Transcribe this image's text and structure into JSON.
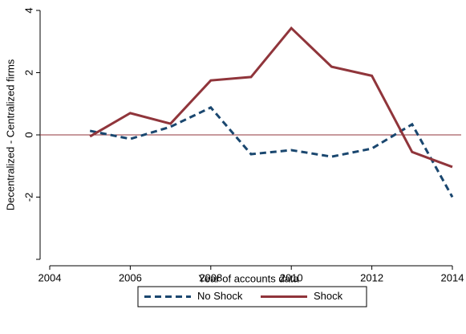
{
  "chart_data": {
    "type": "line",
    "x": [
      2005,
      2006,
      2007,
      2008,
      2009,
      2010,
      2011,
      2012,
      2013,
      2014
    ],
    "series": [
      {
        "name": "No Shock",
        "color": "#1a476f",
        "dashed": true,
        "values": [
          0.13,
          -0.13,
          0.26,
          0.88,
          -0.62,
          -0.49,
          -0.7,
          -0.44,
          0.34,
          -2.0
        ]
      },
      {
        "name": "Shock",
        "color": "#90353b",
        "dashed": false,
        "values": [
          -0.05,
          0.7,
          0.36,
          1.75,
          1.86,
          3.43,
          2.19,
          1.9,
          -0.55,
          -1.03
        ]
      }
    ],
    "xlabel": "Year of accounts data",
    "ylabel": "Decentralized - Centralized firms",
    "xlim": [
      2004,
      2014
    ],
    "xticks": [
      2004,
      2006,
      2008,
      2010,
      2012,
      2014
    ],
    "ylim": [
      -4,
      4
    ],
    "yticks": [
      -2,
      0,
      2,
      4
    ],
    "reference_line": 0,
    "reference_color": "#90353b",
    "legend": "bottom"
  }
}
